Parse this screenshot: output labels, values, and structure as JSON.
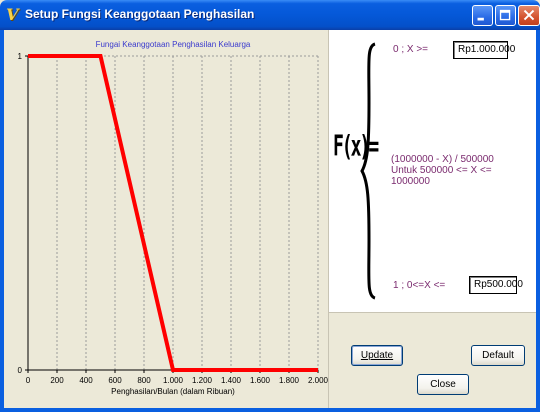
{
  "window": {
    "title": "Setup Fungsi Keanggotaan Penghasilan",
    "app_icon_glyph": "V"
  },
  "chart_data": {
    "type": "line",
    "title": "Fungai Keanggotaan Penghasilan Keluarga",
    "xlabel": "Penghasilan/Bulan (dalam Ribuan)",
    "ylabel": "",
    "x_ticks": [
      0,
      200,
      400,
      600,
      800,
      1000,
      1200,
      1400,
      1600,
      1800,
      2000
    ],
    "x_tick_labels": [
      "0",
      "200",
      "400",
      "600",
      "800",
      "1.000",
      "1.200",
      "1.400",
      "1.600",
      "1.800",
      "2.000"
    ],
    "y_ticks": [
      0,
      1
    ],
    "y_tick_labels": [
      "0",
      "1"
    ],
    "xlim": [
      0,
      2000
    ],
    "ylim": [
      0,
      1
    ],
    "grid": "vertical-dashed",
    "series": [
      {
        "x": [
          0,
          500,
          1000,
          2000
        ],
        "y": [
          1,
          1,
          0,
          0
        ],
        "color": "#ff0000"
      }
    ]
  },
  "formula": {
    "fx_label": "F(x)=",
    "top_condition": "0  ;   X >=",
    "top_value": "Rp1.000.000",
    "middle_expression": "(1000000 - X) / 500000",
    "middle_condition": " Untuk 500000 <= X <= 1000000",
    "bottom_condition": "1  ;   0<=X <=",
    "bottom_value": "Rp500.000"
  },
  "buttons": {
    "update": "Update",
    "default": "Default",
    "close": "Close"
  },
  "colors": {
    "titlebar": "#0558d8",
    "series": "#ff0000",
    "formula_text": "#7a2a6e",
    "chart_title": "#3a3acd"
  },
  "icons": {
    "minimize": "minimize-icon",
    "maximize": "maximize-icon",
    "close": "close-icon"
  }
}
